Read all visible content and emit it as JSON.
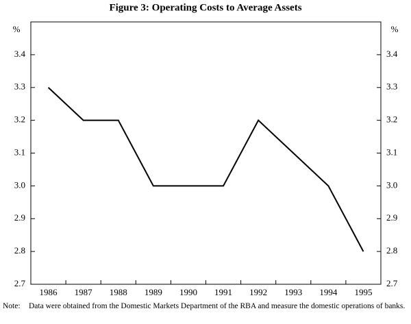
{
  "chart_data": {
    "type": "line",
    "title": "Figure 3: Operating Costs to Average Assets",
    "y_unit": "%",
    "categories": [
      "1986",
      "1987",
      "1988",
      "1989",
      "1990",
      "1991",
      "1992",
      "1993",
      "1994",
      "1995"
    ],
    "values": [
      3.3,
      3.2,
      3.2,
      3.0,
      3.0,
      3.0,
      3.2,
      3.1,
      3.0,
      2.8
    ],
    "color": "#000000",
    "ylim": [
      2.7,
      3.5
    ],
    "yticks": [
      2.7,
      2.8,
      2.9,
      {
        "value": 3.0,
        "label": "3.0"
      },
      3.1,
      3.2,
      3.3,
      3.4
    ],
    "y2lim": [
      2.7,
      3.5
    ],
    "y2ticks": [
      2.7,
      2.8,
      2.9,
      {
        "value": 3.0,
        "label": "3.0"
      },
      3.1,
      3.2,
      3.3,
      3.4
    ],
    "note_label": "Note:",
    "note": "Data were obtained from the Domestic Markets Department of the RBA and measure the domestic operations of banks."
  }
}
